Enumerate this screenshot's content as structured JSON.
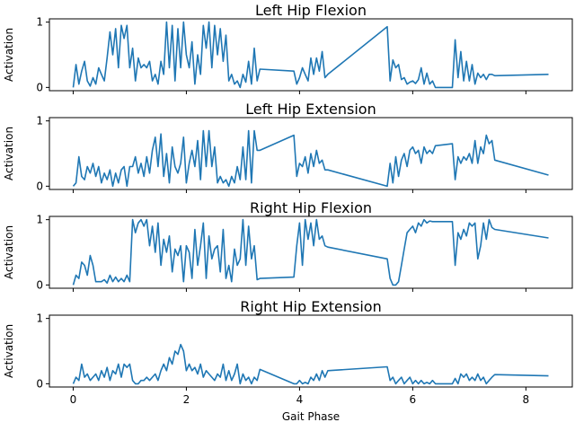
{
  "chart_data": {
    "type": "line",
    "xlabel": "Gait Phase",
    "xlim": [
      -0.42,
      8.82
    ],
    "xticks": [
      0,
      2,
      4,
      6,
      8
    ],
    "yticks": [
      0,
      1
    ],
    "color": "#1f77b4",
    "panels": [
      {
        "title": "Left Hip Flexion",
        "ylabel": "Activation",
        "ylim": [
          -0.05,
          1.05
        ],
        "x": [
          0,
          0.05,
          0.1,
          0.15,
          0.2,
          0.25,
          0.3,
          0.35,
          0.4,
          0.45,
          0.5,
          0.55,
          0.6,
          0.65,
          0.7,
          0.75,
          0.8,
          0.85,
          0.9,
          0.95,
          1.0,
          1.05,
          1.1,
          1.15,
          1.2,
          1.25,
          1.3,
          1.35,
          1.4,
          1.45,
          1.5,
          1.55,
          1.6,
          1.65,
          1.7,
          1.75,
          1.8,
          1.85,
          1.9,
          1.95,
          2.0,
          2.05,
          2.1,
          2.15,
          2.2,
          2.25,
          2.3,
          2.35,
          2.4,
          2.45,
          2.5,
          2.55,
          2.6,
          2.65,
          2.7,
          2.75,
          2.8,
          2.85,
          2.9,
          2.95,
          3.0,
          3.05,
          3.1,
          3.15,
          3.2,
          3.25,
          3.3,
          3.9,
          3.95,
          4.0,
          4.05,
          4.1,
          4.15,
          4.2,
          4.25,
          4.3,
          4.35,
          4.4,
          4.45,
          4.5,
          5.55,
          5.6,
          5.65,
          5.7,
          5.75,
          5.8,
          5.85,
          5.9,
          5.95,
          6.0,
          6.05,
          6.1,
          6.15,
          6.2,
          6.25,
          6.3,
          6.35,
          6.4,
          6.7,
          6.75,
          6.8,
          6.85,
          6.9,
          6.95,
          7.0,
          7.05,
          7.1,
          7.15,
          7.2,
          7.25,
          7.3,
          7.35,
          7.4,
          7.45,
          8.4
        ],
        "y": [
          0.0,
          0.35,
          0.05,
          0.25,
          0.4,
          0.1,
          0.02,
          0.15,
          0.05,
          0.3,
          0.2,
          0.1,
          0.45,
          0.85,
          0.5,
          0.9,
          0.3,
          0.95,
          0.75,
          0.95,
          0.3,
          0.6,
          0.1,
          0.45,
          0.3,
          0.35,
          0.3,
          0.4,
          0.1,
          0.2,
          0.05,
          0.4,
          0.2,
          1.0,
          0.3,
          0.95,
          0.1,
          0.9,
          0.3,
          1.0,
          0.5,
          0.3,
          0.7,
          0.05,
          0.5,
          0.2,
          0.95,
          0.6,
          1.0,
          0.3,
          0.95,
          0.5,
          0.9,
          0.4,
          0.8,
          0.1,
          0.2,
          0.05,
          0.1,
          0.0,
          0.2,
          0.08,
          0.4,
          0.05,
          0.6,
          0.1,
          0.28,
          0.25,
          0.05,
          0.15,
          0.3,
          0.2,
          0.1,
          0.45,
          0.2,
          0.45,
          0.25,
          0.55,
          0.15,
          0.2,
          0.93,
          0.1,
          0.42,
          0.3,
          0.35,
          0.12,
          0.15,
          0.05,
          0.08,
          0.1,
          0.06,
          0.12,
          0.3,
          0.05,
          0.22,
          0.05,
          0.1,
          0.0,
          0.0,
          0.73,
          0.15,
          0.55,
          0.1,
          0.4,
          0.1,
          0.35,
          0.05,
          0.22,
          0.15,
          0.2,
          0.12,
          0.2,
          0.2,
          0.18,
          0.2
        ]
      },
      {
        "title": "Left Hip Extension",
        "ylabel": "Activation",
        "ylim": [
          -0.05,
          1.05
        ],
        "x": [
          0,
          0.05,
          0.1,
          0.15,
          0.2,
          0.25,
          0.3,
          0.35,
          0.4,
          0.45,
          0.5,
          0.55,
          0.6,
          0.65,
          0.7,
          0.75,
          0.8,
          0.85,
          0.9,
          0.95,
          1.0,
          1.05,
          1.1,
          1.15,
          1.2,
          1.25,
          1.3,
          1.35,
          1.4,
          1.45,
          1.5,
          1.55,
          1.6,
          1.65,
          1.7,
          1.75,
          1.8,
          1.85,
          1.9,
          1.95,
          2.0,
          2.05,
          2.1,
          2.15,
          2.2,
          2.25,
          2.3,
          2.35,
          2.4,
          2.45,
          2.5,
          2.55,
          2.6,
          2.65,
          2.7,
          2.75,
          2.8,
          2.85,
          2.9,
          2.95,
          3.0,
          3.05,
          3.1,
          3.15,
          3.2,
          3.25,
          3.3,
          3.9,
          3.95,
          4.0,
          4.05,
          4.1,
          4.15,
          4.2,
          4.25,
          4.3,
          4.35,
          4.4,
          4.45,
          4.5,
          5.55,
          5.6,
          5.65,
          5.7,
          5.75,
          5.8,
          5.85,
          5.9,
          5.95,
          6.0,
          6.05,
          6.1,
          6.15,
          6.2,
          6.25,
          6.3,
          6.35,
          6.4,
          6.7,
          6.75,
          6.8,
          6.85,
          6.9,
          6.95,
          7.0,
          7.05,
          7.1,
          7.15,
          7.2,
          7.25,
          7.3,
          7.35,
          7.4,
          7.45,
          8.4
        ],
        "y": [
          0.0,
          0.05,
          0.45,
          0.15,
          0.1,
          0.3,
          0.2,
          0.35,
          0.15,
          0.3,
          0.05,
          0.2,
          0.1,
          0.25,
          0.0,
          0.2,
          0.05,
          0.25,
          0.3,
          0.0,
          0.3,
          0.3,
          0.45,
          0.2,
          0.35,
          0.15,
          0.45,
          0.2,
          0.55,
          0.75,
          0.3,
          0.8,
          0.15,
          0.5,
          0.05,
          0.6,
          0.3,
          0.2,
          0.35,
          0.75,
          0.05,
          0.35,
          0.55,
          0.3,
          0.7,
          0.1,
          0.85,
          0.3,
          0.85,
          0.3,
          0.6,
          0.05,
          0.15,
          0.05,
          0.1,
          0.0,
          0.15,
          0.05,
          0.3,
          0.1,
          0.6,
          0.1,
          0.85,
          0.05,
          0.85,
          0.55,
          0.55,
          0.78,
          0.15,
          0.35,
          0.3,
          0.45,
          0.2,
          0.5,
          0.3,
          0.55,
          0.35,
          0.4,
          0.25,
          0.25,
          0.0,
          0.35,
          0.05,
          0.45,
          0.15,
          0.4,
          0.5,
          0.3,
          0.55,
          0.6,
          0.5,
          0.55,
          0.35,
          0.6,
          0.5,
          0.55,
          0.5,
          0.62,
          0.65,
          0.1,
          0.45,
          0.35,
          0.45,
          0.4,
          0.5,
          0.35,
          0.7,
          0.35,
          0.6,
          0.5,
          0.78,
          0.65,
          0.7,
          0.4,
          0.17
        ]
      },
      {
        "title": "Right Hip Flexion",
        "ylabel": "Activation",
        "ylim": [
          -0.05,
          1.05
        ],
        "x": [
          0,
          0.05,
          0.1,
          0.15,
          0.2,
          0.25,
          0.3,
          0.35,
          0.4,
          0.45,
          0.5,
          0.55,
          0.6,
          0.65,
          0.7,
          0.75,
          0.8,
          0.85,
          0.9,
          0.95,
          1.0,
          1.05,
          1.1,
          1.15,
          1.2,
          1.25,
          1.3,
          1.35,
          1.4,
          1.45,
          1.5,
          1.55,
          1.6,
          1.65,
          1.7,
          1.75,
          1.8,
          1.85,
          1.9,
          1.95,
          2.0,
          2.05,
          2.1,
          2.15,
          2.2,
          2.25,
          2.3,
          2.35,
          2.4,
          2.45,
          2.5,
          2.55,
          2.6,
          2.65,
          2.7,
          2.75,
          2.8,
          2.85,
          2.9,
          2.95,
          3.0,
          3.05,
          3.1,
          3.15,
          3.2,
          3.25,
          3.3,
          3.9,
          3.95,
          4.0,
          4.05,
          4.1,
          4.15,
          4.2,
          4.25,
          4.3,
          4.35,
          4.4,
          4.45,
          4.5,
          5.55,
          5.6,
          5.65,
          5.7,
          5.75,
          5.8,
          5.85,
          5.9,
          5.95,
          6.0,
          6.05,
          6.1,
          6.15,
          6.2,
          6.25,
          6.3,
          6.35,
          6.4,
          6.7,
          6.75,
          6.8,
          6.85,
          6.9,
          6.95,
          7.0,
          7.05,
          7.1,
          7.15,
          7.2,
          7.25,
          7.3,
          7.35,
          7.4,
          7.45,
          8.4
        ],
        "y": [
          0.0,
          0.15,
          0.1,
          0.35,
          0.3,
          0.15,
          0.45,
          0.3,
          0.05,
          0.05,
          0.05,
          0.08,
          0.03,
          0.15,
          0.05,
          0.12,
          0.05,
          0.1,
          0.05,
          0.15,
          0.05,
          1.0,
          0.8,
          0.95,
          1.0,
          0.9,
          1.0,
          0.6,
          0.9,
          0.5,
          0.95,
          0.3,
          0.7,
          0.5,
          0.75,
          0.2,
          0.55,
          0.45,
          0.6,
          0.05,
          0.6,
          0.5,
          0.1,
          0.85,
          0.3,
          0.6,
          0.95,
          0.1,
          0.75,
          0.4,
          0.55,
          0.6,
          0.2,
          0.85,
          0.1,
          0.3,
          0.05,
          0.55,
          0.3,
          0.4,
          1.0,
          0.3,
          0.9,
          0.4,
          0.6,
          0.08,
          0.1,
          0.12,
          0.6,
          0.95,
          0.3,
          1.0,
          0.7,
          0.95,
          0.6,
          1.0,
          0.7,
          0.75,
          0.6,
          0.58,
          0.4,
          0.1,
          0.0,
          0.0,
          0.05,
          0.3,
          0.55,
          0.8,
          0.85,
          0.9,
          0.8,
          0.95,
          0.9,
          1.0,
          0.95,
          0.98,
          0.97,
          0.97,
          0.97,
          0.3,
          0.8,
          0.7,
          0.85,
          0.75,
          0.95,
          0.9,
          0.95,
          0.4,
          0.6,
          0.95,
          0.7,
          1.0,
          0.88,
          0.85,
          0.72
        ]
      },
      {
        "title": "Right Hip Extension",
        "ylabel": "Activation",
        "ylim": [
          -0.05,
          1.05
        ],
        "x": [
          0,
          0.05,
          0.1,
          0.15,
          0.2,
          0.25,
          0.3,
          0.35,
          0.4,
          0.45,
          0.5,
          0.55,
          0.6,
          0.65,
          0.7,
          0.75,
          0.8,
          0.85,
          0.9,
          0.95,
          1.0,
          1.05,
          1.1,
          1.15,
          1.2,
          1.25,
          1.3,
          1.35,
          1.4,
          1.45,
          1.5,
          1.55,
          1.6,
          1.65,
          1.7,
          1.75,
          1.8,
          1.85,
          1.9,
          1.95,
          2.0,
          2.05,
          2.1,
          2.15,
          2.2,
          2.25,
          2.3,
          2.35,
          2.4,
          2.45,
          2.5,
          2.55,
          2.6,
          2.65,
          2.7,
          2.75,
          2.8,
          2.85,
          2.9,
          2.95,
          3.0,
          3.05,
          3.1,
          3.15,
          3.2,
          3.25,
          3.3,
          3.9,
          3.95,
          4.0,
          4.05,
          4.1,
          4.15,
          4.2,
          4.25,
          4.3,
          4.35,
          4.4,
          4.45,
          4.5,
          5.55,
          5.6,
          5.65,
          5.7,
          5.75,
          5.8,
          5.85,
          5.9,
          5.95,
          6.0,
          6.05,
          6.1,
          6.15,
          6.2,
          6.25,
          6.3,
          6.35,
          6.4,
          6.7,
          6.75,
          6.8,
          6.85,
          6.9,
          6.95,
          7.0,
          7.05,
          7.1,
          7.15,
          7.2,
          7.25,
          7.3,
          7.35,
          7.4,
          7.45,
          8.4
        ],
        "y": [
          0.0,
          0.1,
          0.05,
          0.3,
          0.1,
          0.15,
          0.05,
          0.1,
          0.15,
          0.05,
          0.2,
          0.1,
          0.25,
          0.05,
          0.2,
          0.15,
          0.3,
          0.1,
          0.3,
          0.25,
          0.3,
          0.05,
          0.0,
          0.0,
          0.05,
          0.05,
          0.1,
          0.05,
          0.1,
          0.15,
          0.05,
          0.2,
          0.3,
          0.2,
          0.4,
          0.3,
          0.5,
          0.45,
          0.6,
          0.5,
          0.2,
          0.3,
          0.2,
          0.25,
          0.15,
          0.3,
          0.1,
          0.2,
          0.15,
          0.1,
          0.05,
          0.15,
          0.1,
          0.3,
          0.05,
          0.2,
          0.05,
          0.15,
          0.3,
          0.0,
          0.15,
          0.05,
          0.1,
          0.0,
          0.1,
          0.05,
          0.22,
          0.0,
          0.0,
          0.05,
          0.0,
          0.02,
          0.0,
          0.1,
          0.05,
          0.15,
          0.05,
          0.2,
          0.1,
          0.2,
          0.26,
          0.05,
          0.1,
          0.0,
          0.05,
          0.1,
          0.0,
          0.05,
          0.1,
          0.0,
          0.05,
          0.0,
          0.05,
          0.0,
          0.02,
          0.0,
          0.05,
          0.0,
          0.0,
          0.08,
          0.0,
          0.15,
          0.1,
          0.15,
          0.05,
          0.1,
          0.05,
          0.15,
          0.05,
          0.1,
          0.0,
          0.05,
          0.1,
          0.14,
          0.12
        ]
      }
    ]
  }
}
